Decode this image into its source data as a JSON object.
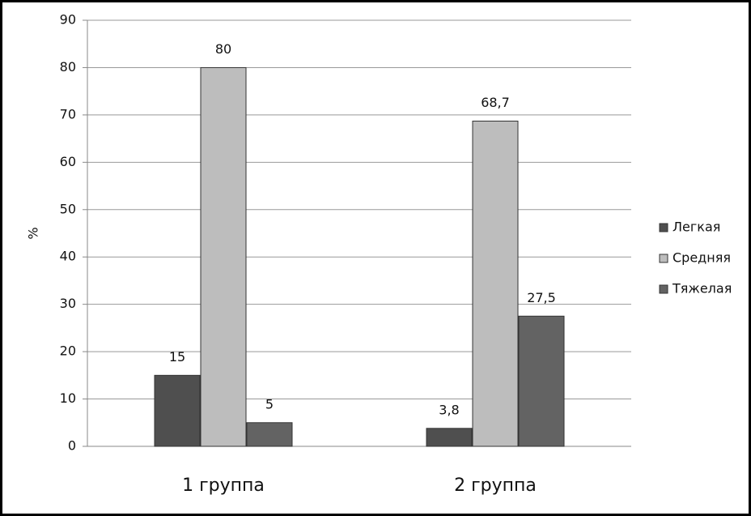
{
  "chart_data": {
    "type": "bar",
    "y_label": "%",
    "categories": [
      "1 группа",
      "2 группа"
    ],
    "series": [
      {
        "name": "Легкая",
        "color": "#4f4f4f",
        "values": [
          15,
          3.8
        ],
        "value_labels": [
          "15",
          "3,8"
        ]
      },
      {
        "name": "Средняя",
        "color": "#bdbdbd",
        "values": [
          80,
          68.7
        ],
        "value_labels": [
          "80",
          "68,7"
        ]
      },
      {
        "name": "Тяжелая",
        "color": "#636363",
        "values": [
          5,
          27.5
        ],
        "value_labels": [
          "5",
          "27,5"
        ]
      }
    ],
    "ylim": [
      0,
      90
    ],
    "yticks": [
      0,
      10,
      20,
      30,
      40,
      50,
      60,
      70,
      80,
      90
    ],
    "grid": true,
    "legend": "right"
  }
}
